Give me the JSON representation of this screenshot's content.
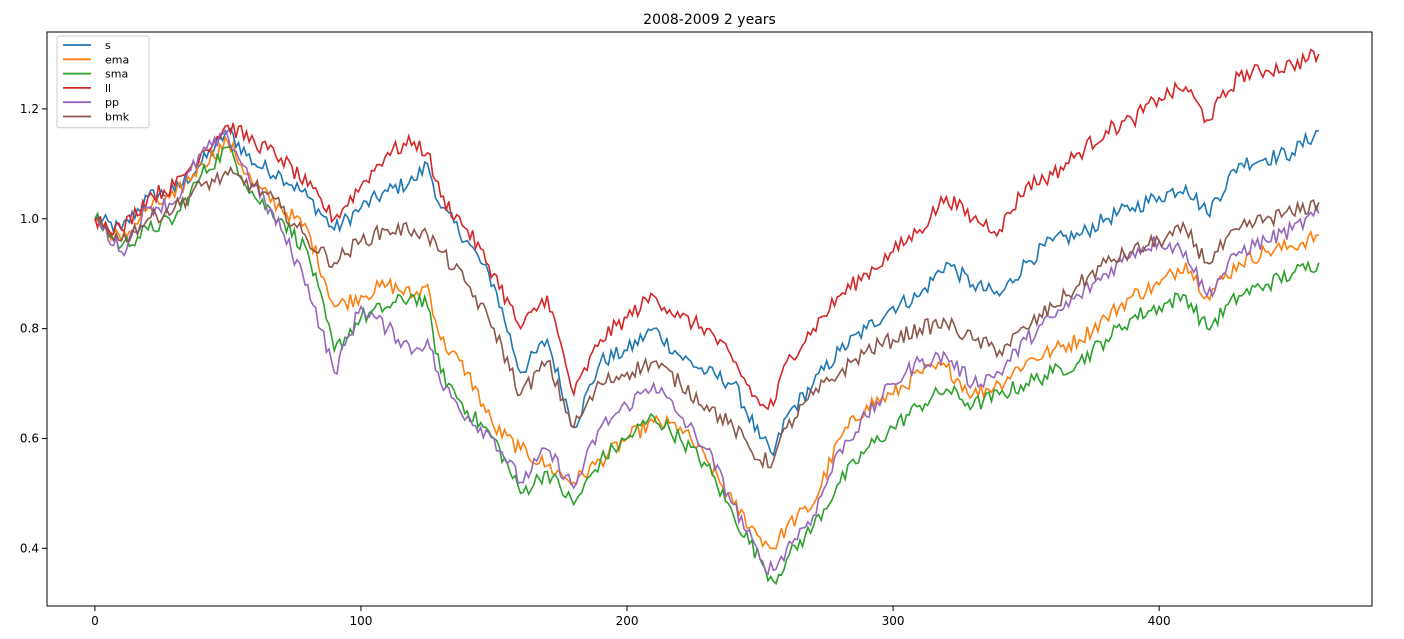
{
  "chart_data": {
    "type": "line",
    "title": "2008-2009 2 years",
    "xlabel": "",
    "ylabel": "",
    "xlim": [
      -18,
      480
    ],
    "ylim": [
      0.295,
      1.34
    ],
    "x_ticks": [
      0,
      100,
      200,
      300,
      400
    ],
    "x_tick_labels": [
      "0",
      "100",
      "200",
      "300",
      "400"
    ],
    "y_ticks": [
      0.4,
      0.6,
      0.8,
      1.0,
      1.2
    ],
    "y_tick_labels": [
      "0.4",
      "0.6",
      "0.8",
      "1.0",
      "1.2"
    ],
    "grid": false,
    "legend_position": "top-left",
    "series": [
      {
        "name": "s",
        "color": "#1f77b4",
        "x": [
          0,
          10,
          20,
          30,
          40,
          50,
          60,
          70,
          80,
          90,
          100,
          110,
          120,
          125,
          130,
          140,
          150,
          160,
          170,
          180,
          190,
          200,
          210,
          220,
          230,
          240,
          250,
          255,
          260,
          270,
          280,
          290,
          300,
          310,
          320,
          330,
          340,
          350,
          360,
          370,
          380,
          390,
          400,
          410,
          418,
          430,
          440,
          450,
          460
        ],
        "values": [
          1.0,
          0.98,
          1.04,
          1.05,
          1.1,
          1.16,
          1.1,
          1.08,
          1.04,
          0.98,
          1.02,
          1.05,
          1.07,
          1.1,
          1.02,
          0.96,
          0.88,
          0.72,
          0.78,
          0.62,
          0.74,
          0.76,
          0.8,
          0.75,
          0.72,
          0.7,
          0.6,
          0.57,
          0.64,
          0.7,
          0.76,
          0.8,
          0.84,
          0.86,
          0.92,
          0.88,
          0.86,
          0.92,
          0.96,
          0.97,
          1.0,
          1.02,
          1.04,
          1.06,
          1.01,
          1.1,
          1.11,
          1.12,
          1.16
        ]
      },
      {
        "name": "ema",
        "color": "#ff7f0e",
        "x": [
          0,
          10,
          20,
          30,
          40,
          50,
          60,
          70,
          80,
          90,
          100,
          110,
          120,
          125,
          130,
          140,
          150,
          160,
          170,
          180,
          190,
          200,
          210,
          220,
          230,
          240,
          250,
          255,
          260,
          270,
          280,
          290,
          300,
          310,
          320,
          330,
          340,
          350,
          360,
          370,
          380,
          390,
          400,
          410,
          418,
          430,
          440,
          450,
          460
        ],
        "values": [
          1.0,
          0.96,
          1.02,
          1.04,
          1.1,
          1.14,
          1.06,
          1.02,
          0.98,
          0.84,
          0.86,
          0.88,
          0.86,
          0.88,
          0.78,
          0.72,
          0.62,
          0.58,
          0.55,
          0.52,
          0.56,
          0.6,
          0.63,
          0.62,
          0.56,
          0.48,
          0.42,
          0.4,
          0.44,
          0.48,
          0.6,
          0.66,
          0.68,
          0.72,
          0.73,
          0.68,
          0.7,
          0.74,
          0.76,
          0.78,
          0.82,
          0.86,
          0.88,
          0.92,
          0.86,
          0.92,
          0.94,
          0.95,
          0.97
        ]
      },
      {
        "name": "sma",
        "color": "#2ca02c",
        "x": [
          0,
          10,
          20,
          30,
          40,
          50,
          60,
          70,
          80,
          90,
          100,
          110,
          120,
          125,
          130,
          140,
          150,
          160,
          170,
          180,
          190,
          200,
          210,
          220,
          230,
          240,
          250,
          255,
          260,
          270,
          280,
          290,
          300,
          310,
          320,
          330,
          340,
          350,
          360,
          370,
          380,
          390,
          400,
          410,
          418,
          430,
          440,
          450,
          460
        ],
        "values": [
          1.0,
          0.95,
          0.98,
          1.0,
          1.08,
          1.13,
          1.04,
          1.0,
          0.94,
          0.76,
          0.82,
          0.84,
          0.86,
          0.84,
          0.72,
          0.65,
          0.6,
          0.5,
          0.54,
          0.48,
          0.56,
          0.6,
          0.64,
          0.6,
          0.55,
          0.46,
          0.38,
          0.34,
          0.38,
          0.44,
          0.52,
          0.58,
          0.62,
          0.66,
          0.69,
          0.66,
          0.68,
          0.7,
          0.72,
          0.74,
          0.78,
          0.82,
          0.84,
          0.86,
          0.8,
          0.86,
          0.88,
          0.9,
          0.92
        ]
      },
      {
        "name": "ll",
        "color": "#d62728",
        "x": [
          0,
          10,
          20,
          30,
          40,
          50,
          60,
          70,
          80,
          90,
          100,
          110,
          120,
          125,
          130,
          140,
          150,
          160,
          170,
          180,
          190,
          200,
          210,
          220,
          230,
          240,
          250,
          255,
          260,
          270,
          280,
          290,
          300,
          310,
          320,
          330,
          340,
          350,
          360,
          370,
          380,
          390,
          400,
          410,
          418,
          430,
          440,
          450,
          460
        ],
        "values": [
          1.0,
          0.98,
          1.04,
          1.06,
          1.12,
          1.17,
          1.14,
          1.11,
          1.06,
          1.0,
          1.06,
          1.12,
          1.14,
          1.12,
          1.04,
          0.98,
          0.9,
          0.8,
          0.86,
          0.68,
          0.78,
          0.82,
          0.86,
          0.82,
          0.8,
          0.74,
          0.66,
          0.66,
          0.74,
          0.8,
          0.86,
          0.9,
          0.94,
          0.98,
          1.04,
          1.0,
          0.98,
          1.06,
          1.08,
          1.12,
          1.16,
          1.18,
          1.22,
          1.24,
          1.18,
          1.26,
          1.27,
          1.28,
          1.3
        ]
      },
      {
        "name": "pp",
        "color": "#9467bd",
        "x": [
          0,
          10,
          20,
          30,
          40,
          50,
          60,
          70,
          80,
          90,
          100,
          110,
          120,
          125,
          130,
          140,
          150,
          160,
          170,
          180,
          190,
          200,
          210,
          220,
          230,
          240,
          250,
          255,
          260,
          270,
          280,
          290,
          300,
          310,
          320,
          330,
          340,
          350,
          360,
          370,
          380,
          390,
          400,
          410,
          418,
          430,
          440,
          450,
          460
        ],
        "values": [
          1.0,
          0.94,
          1.02,
          1.03,
          1.12,
          1.15,
          1.06,
          0.98,
          0.88,
          0.72,
          0.84,
          0.8,
          0.76,
          0.78,
          0.7,
          0.64,
          0.6,
          0.52,
          0.58,
          0.51,
          0.62,
          0.66,
          0.7,
          0.64,
          0.58,
          0.48,
          0.38,
          0.36,
          0.4,
          0.46,
          0.58,
          0.64,
          0.7,
          0.74,
          0.75,
          0.7,
          0.72,
          0.78,
          0.82,
          0.86,
          0.9,
          0.94,
          0.96,
          0.94,
          0.86,
          0.94,
          0.96,
          0.98,
          1.01
        ]
      },
      {
        "name": "bmk",
        "color": "#8c564b",
        "x": [
          0,
          10,
          20,
          30,
          40,
          50,
          60,
          70,
          80,
          90,
          100,
          110,
          120,
          125,
          130,
          140,
          150,
          160,
          170,
          180,
          190,
          200,
          210,
          220,
          230,
          240,
          250,
          255,
          260,
          270,
          280,
          290,
          300,
          310,
          320,
          330,
          340,
          350,
          360,
          370,
          380,
          390,
          400,
          410,
          418,
          430,
          440,
          450,
          460
        ],
        "values": [
          1.0,
          0.96,
          1.0,
          1.02,
          1.06,
          1.08,
          1.06,
          1.02,
          0.96,
          0.92,
          0.96,
          0.98,
          0.98,
          0.97,
          0.94,
          0.88,
          0.8,
          0.68,
          0.74,
          0.62,
          0.7,
          0.72,
          0.74,
          0.7,
          0.66,
          0.62,
          0.56,
          0.56,
          0.62,
          0.68,
          0.72,
          0.76,
          0.78,
          0.8,
          0.81,
          0.78,
          0.76,
          0.8,
          0.84,
          0.88,
          0.92,
          0.94,
          0.96,
          0.98,
          0.92,
          0.98,
          1.0,
          1.01,
          1.03
        ]
      }
    ]
  }
}
